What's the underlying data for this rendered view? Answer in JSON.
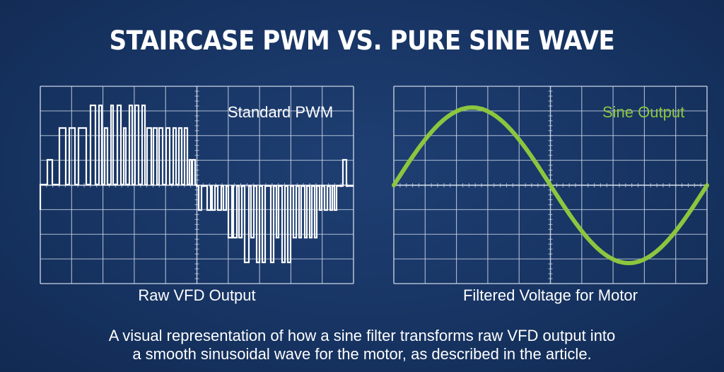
{
  "title": "STAIRCASE PWM VS. PURE SINE WAVE",
  "panels": [
    {
      "label": "Standard PWM",
      "caption": "Raw VFD Output",
      "label_color": "#ffffff",
      "trace_color": "#ffffff"
    },
    {
      "label": "Sine Output",
      "caption": "Filtered Voltage for Motor",
      "label_color": "#8cc63f",
      "trace_color": "#8cc63f"
    }
  ],
  "description": {
    "line1": "A visual representation of how a sine filter transforms raw VFD output into",
    "line2": "a smooth sinusoidal wave for the motor, as described in the article."
  },
  "colors": {
    "background": "#173463",
    "grid": "#c9d3e3"
  }
}
